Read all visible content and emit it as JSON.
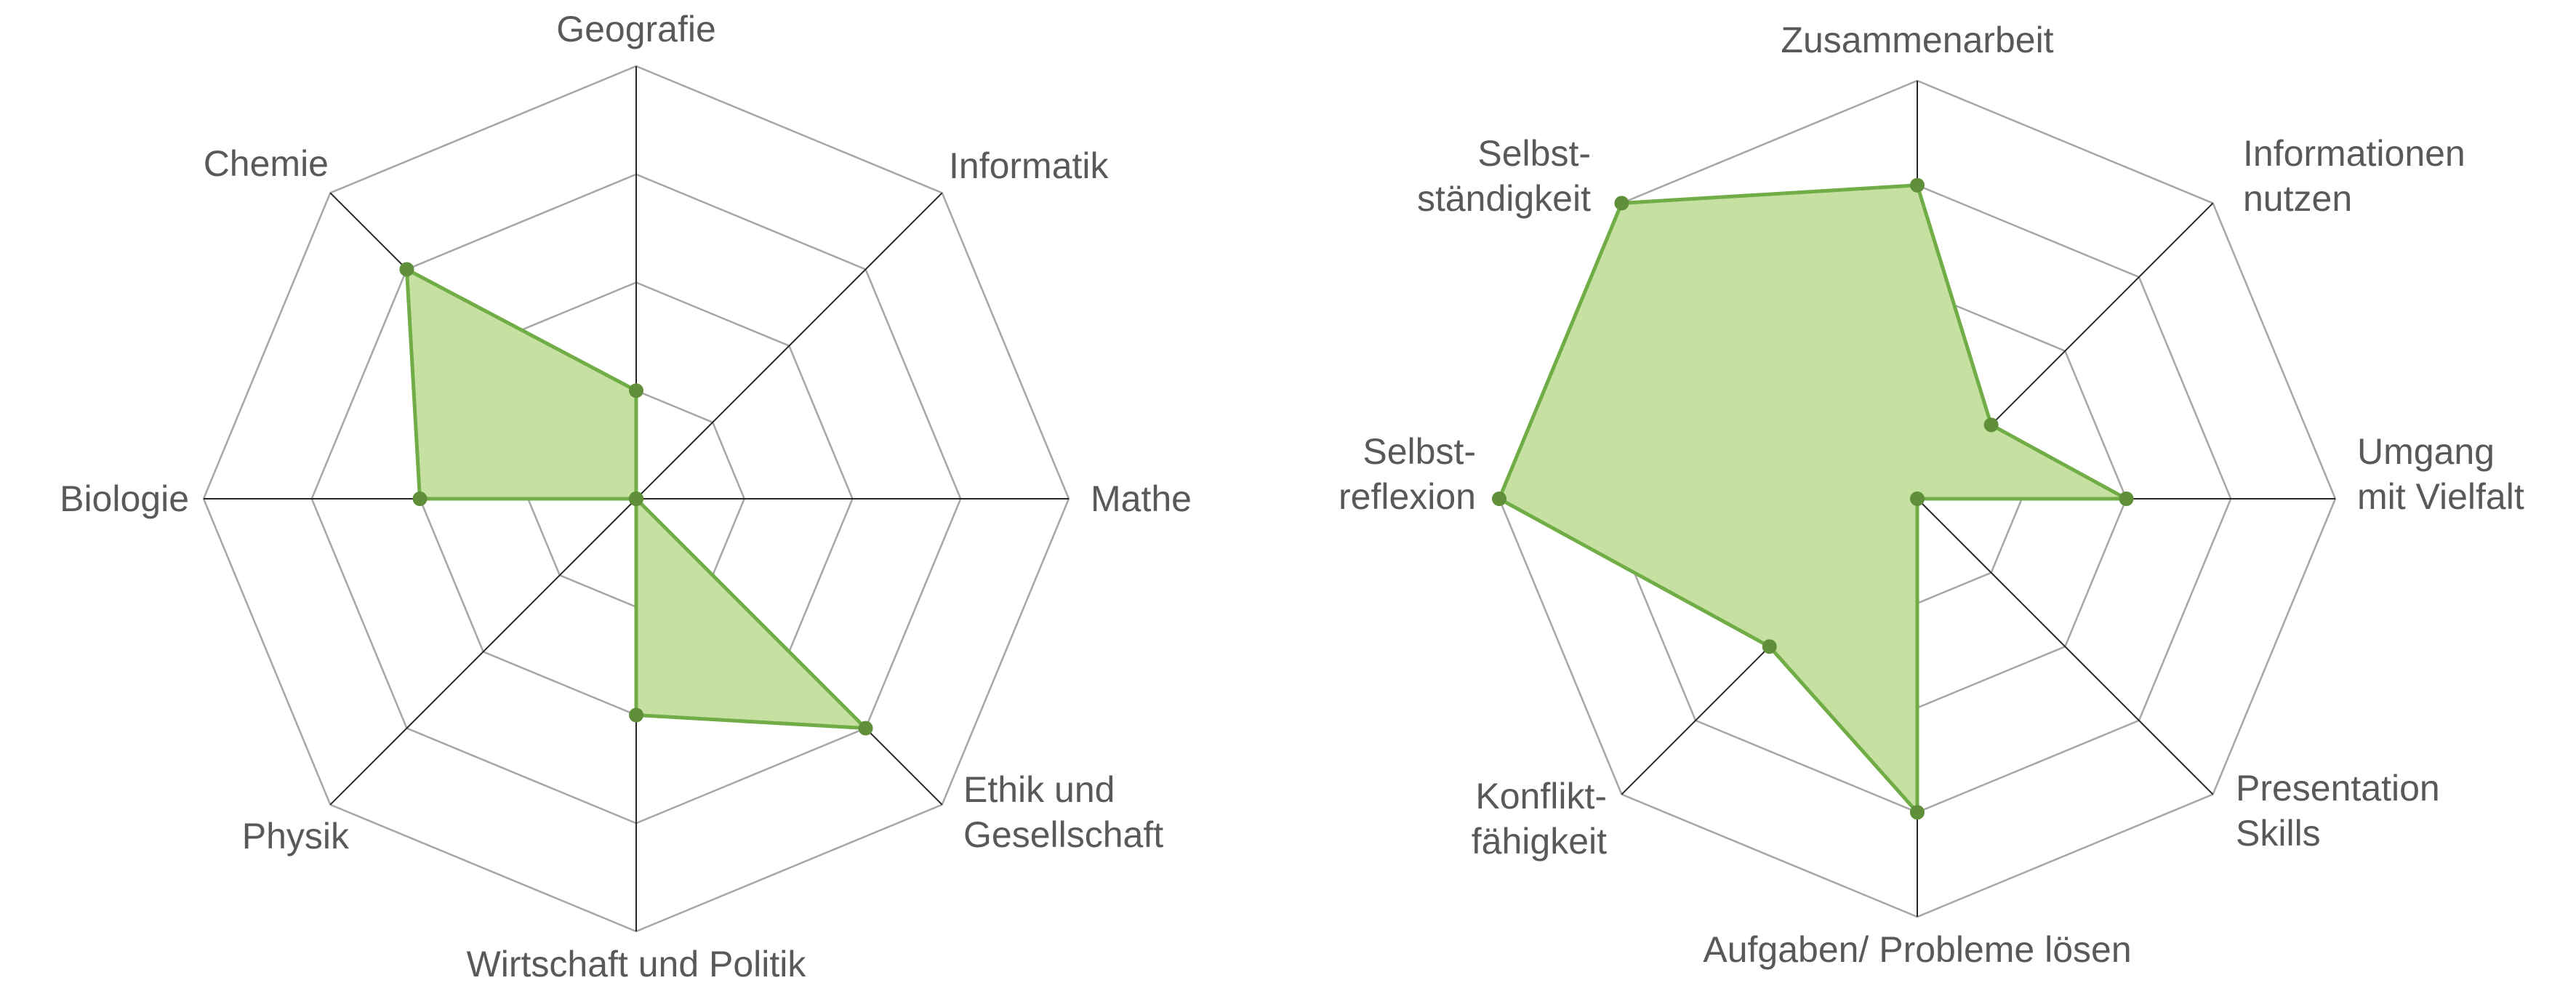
{
  "colors": {
    "grid": "#a6a6a6",
    "axis": "#262626",
    "fill": "#c5e0a0",
    "stroke": "#70ad47",
    "point": "#5f8f39",
    "text": "#595959"
  },
  "chart_data": [
    {
      "type": "radar",
      "title": "",
      "axes": [
        "Geografie",
        "Informatik",
        "Mathe",
        "Ethik und Gesellschaft",
        "Wirtschaft und Politik",
        "Physik",
        "Biologie",
        "Chemie"
      ],
      "axis_label_lines": [
        [
          "Geografie"
        ],
        [
          "Informatik"
        ],
        [
          "Mathe"
        ],
        [
          "Ethik und",
          "Gesellschaft"
        ],
        [
          "Wirtschaft und Politik"
        ],
        [
          "Physik"
        ],
        [
          "Biologie"
        ],
        [
          "Chemie"
        ]
      ],
      "rlim": [
        0,
        4
      ],
      "ring_count": 4,
      "grid": true,
      "series": [
        {
          "values": [
            1,
            0,
            0,
            3,
            2,
            0,
            2,
            3
          ]
        }
      ]
    },
    {
      "type": "radar",
      "title": "",
      "axes": [
        "Zusammenarbeit",
        "Informationen nutzen",
        "Umgang mit Vielfalt",
        "Presentation Skills",
        "Aufgaben/ Probleme lösen",
        "Konflikt- fähigkeit",
        "Selbst- reflexion",
        "Selbst- ständigkeit"
      ],
      "axis_label_lines": [
        [
          "Zusammenarbeit"
        ],
        [
          "Informationen",
          "nutzen"
        ],
        [
          "Umgang",
          "mit Vielfalt"
        ],
        [
          "Presentation",
          "Skills"
        ],
        [
          "Aufgaben/ Probleme lösen"
        ],
        [
          "Konflikt-",
          "fähigkeit"
        ],
        [
          "Selbst-",
          "reflexion"
        ],
        [
          "Selbst-",
          "ständigkeit"
        ]
      ],
      "rlim": [
        0,
        4
      ],
      "ring_count": 4,
      "grid": true,
      "series": [
        {
          "values": [
            3,
            1,
            2,
            0,
            3,
            2,
            4,
            4
          ]
        }
      ]
    }
  ]
}
